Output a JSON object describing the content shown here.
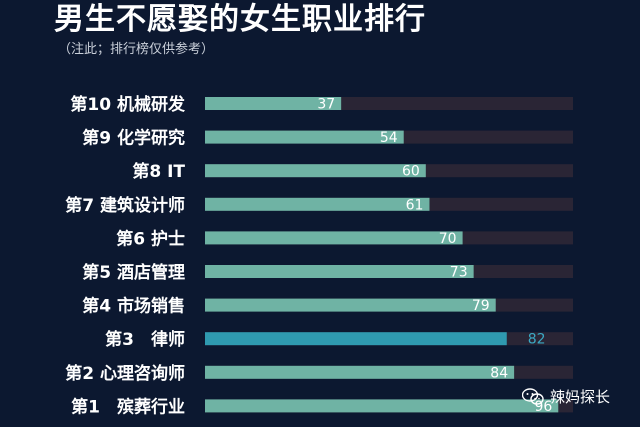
{
  "header": {
    "title": "男生不愿娶的女生职业排行",
    "note": "（注此；排行榜仅供参考）"
  },
  "watermark": {
    "icon": "wechat-icon",
    "text": "辣妈探长"
  },
  "colors": {
    "background": "#0c1830",
    "bar": "#6fb3a4",
    "bar_highlight": "#2f9ab0",
    "track": "#2a2535",
    "label_on_bar": "#ffffff",
    "label_highlight": "#3ba9c4"
  },
  "chart_data": {
    "type": "bar",
    "orientation": "horizontal",
    "title": "男生不愿娶的女生职业排行",
    "xlim": [
      0,
      100
    ],
    "grid": false,
    "legend": "none",
    "categories": [
      "第10 机械研发",
      "第9 化学研究",
      "第8 IT",
      "第7 建筑设计师",
      "第6 护士",
      "第5 酒店管理",
      "第4 市场销售",
      "第3　律师",
      "第2 心理咨询师",
      "第1　殡葬行业"
    ],
    "values": [
      37,
      54,
      60,
      61,
      70,
      73,
      79,
      82,
      84,
      96
    ],
    "highlight_index": 7
  }
}
